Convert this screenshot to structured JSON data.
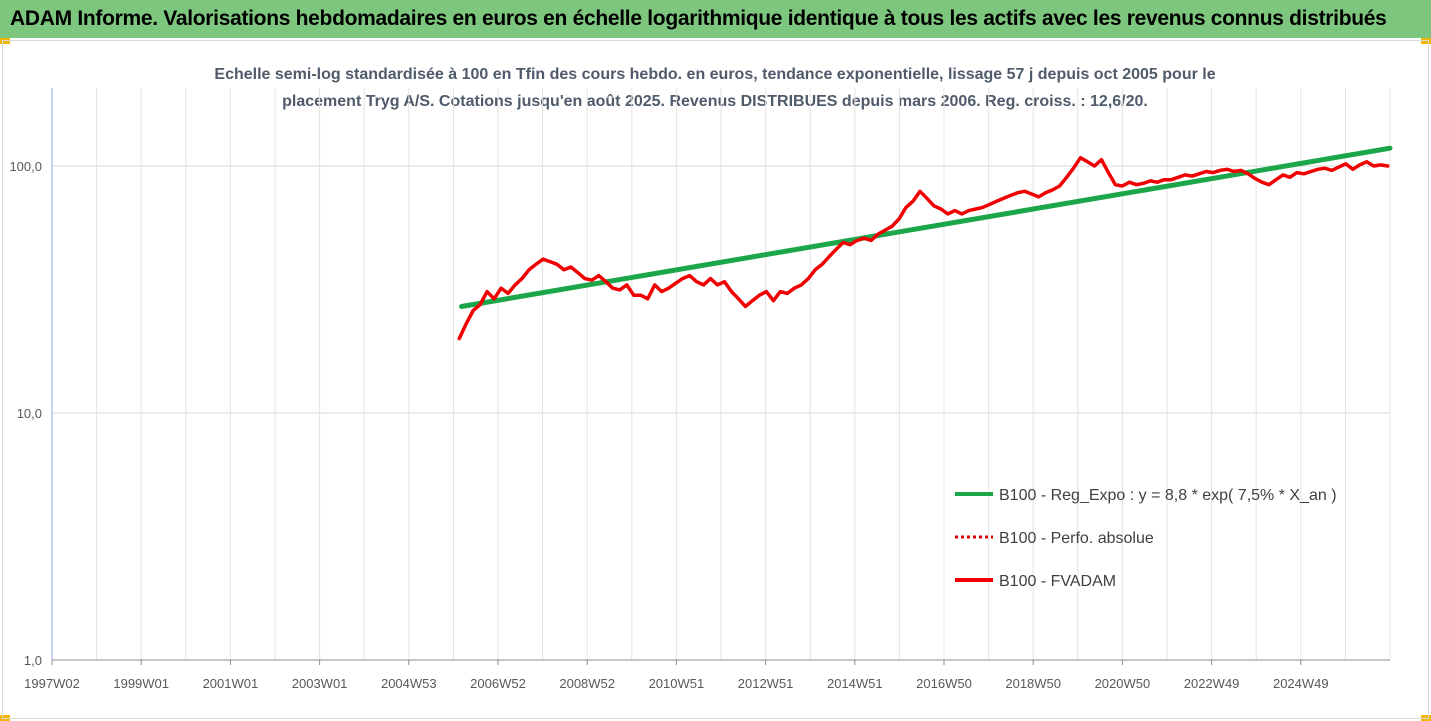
{
  "header": {
    "title": "ADAM Informe. Valorisations hebdomadaires en euros en échelle logarithmique identique à tous les actifs avec les revenus connus distribués"
  },
  "chart_data": {
    "type": "line",
    "title_line1": "Echelle semi-log standardisée à 100 en Tfin des cours hebdo. en euros, tendance exponentielle, lissage 57 j depuis oct 2005 pour le",
    "title_line2": "placement Tryg A/S. Cotations jusqu'en août 2025. Revenus DISTRIBUES depuis mars 2006. Reg. croiss. : 12,6/20.",
    "y_scale": "log",
    "ylim": [
      1,
      200
    ],
    "y_ticks": [
      {
        "value": 1,
        "label": "1,0"
      },
      {
        "value": 10,
        "label": "10,0"
      },
      {
        "value": 100,
        "label": "100,0"
      }
    ],
    "xlim": [
      1997.0,
      2025.75
    ],
    "x_tick_labels": [
      "1997W02",
      "1999W01",
      "2001W01",
      "2003W01",
      "2004W53",
      "2006W52",
      "2008W52",
      "2010W51",
      "2012W51",
      "2014W51",
      "2016W50",
      "2018W50",
      "2020W50",
      "2022W49",
      "2024W49"
    ],
    "grid": true,
    "legend_position": "right",
    "series": [
      {
        "name": "B100 - Reg_Expo : y = 8,8 * exp( 7,5% *  X_an )",
        "color": "#1ca64a",
        "style": "solid",
        "x": [
          2005.8,
          2025.75
        ],
        "y": [
          27,
          118
        ]
      },
      {
        "name": "B100 - Perfo. absolue",
        "color": "#e00000",
        "style": "dotted",
        "x": [],
        "y": []
      },
      {
        "name": "B100 - FVADAM",
        "color": "#f00000",
        "style": "solid",
        "x": [
          2005.75,
          2005.9,
          2006.05,
          2006.2,
          2006.35,
          2006.5,
          2006.65,
          2006.8,
          2006.95,
          2007.1,
          2007.25,
          2007.4,
          2007.55,
          2007.7,
          2007.85,
          2008.0,
          2008.15,
          2008.3,
          2008.45,
          2008.6,
          2008.75,
          2008.9,
          2009.05,
          2009.2,
          2009.35,
          2009.5,
          2009.65,
          2009.8,
          2009.95,
          2010.1,
          2010.25,
          2010.4,
          2010.55,
          2010.7,
          2010.85,
          2011.0,
          2011.15,
          2011.3,
          2011.45,
          2011.6,
          2011.75,
          2011.9,
          2012.05,
          2012.2,
          2012.35,
          2012.5,
          2012.65,
          2012.8,
          2012.95,
          2013.1,
          2013.25,
          2013.4,
          2013.55,
          2013.7,
          2013.85,
          2014.0,
          2014.15,
          2014.3,
          2014.45,
          2014.6,
          2014.75,
          2014.9,
          2015.05,
          2015.2,
          2015.35,
          2015.5,
          2015.65,
          2015.8,
          2015.95,
          2016.1,
          2016.25,
          2016.4,
          2016.55,
          2016.7,
          2016.85,
          2017.0,
          2017.15,
          2017.3,
          2017.45,
          2017.6,
          2017.75,
          2017.9,
          2018.05,
          2018.2,
          2018.35,
          2018.5,
          2018.65,
          2018.8,
          2018.95,
          2019.1,
          2019.25,
          2019.4,
          2019.55,
          2019.7,
          2019.85,
          2020.0,
          2020.15,
          2020.3,
          2020.45,
          2020.6,
          2020.75,
          2020.9,
          2021.05,
          2021.2,
          2021.35,
          2021.5,
          2021.65,
          2021.8,
          2021.95,
          2022.1,
          2022.25,
          2022.4,
          2022.55,
          2022.7,
          2022.85,
          2023.0,
          2023.15,
          2023.3,
          2023.45,
          2023.6,
          2023.75,
          2023.9,
          2024.05,
          2024.2,
          2024.35,
          2024.5,
          2024.65,
          2024.8,
          2024.95,
          2025.1,
          2025.25,
          2025.4,
          2025.55,
          2025.7
        ],
        "y": [
          20,
          23,
          26,
          27.5,
          31,
          29,
          32,
          30.5,
          33,
          35,
          38,
          40,
          42,
          41,
          40,
          38,
          39,
          37,
          35,
          34.5,
          36,
          34,
          32,
          31.5,
          33,
          30,
          30,
          29,
          33,
          31,
          32,
          33.5,
          35,
          36,
          34,
          33,
          35,
          33,
          34,
          31,
          29,
          27,
          28.5,
          30,
          31,
          28.5,
          31,
          30.5,
          32,
          33,
          35,
          38,
          40,
          43,
          46,
          49,
          48,
          50,
          51,
          50,
          53,
          55,
          57,
          61,
          68,
          72,
          79,
          74,
          69,
          67,
          64,
          66,
          64,
          66,
          67,
          68,
          70,
          72,
          74,
          76,
          78,
          79,
          77,
          75,
          78,
          80,
          83,
          90,
          98,
          108,
          104,
          100,
          106,
          94,
          84,
          83,
          86,
          84,
          85,
          87,
          86,
          88,
          88,
          90,
          92,
          91,
          93,
          95,
          94,
          96,
          97,
          95,
          96,
          93,
          89,
          86,
          84,
          88,
          92,
          90,
          94,
          93,
          95,
          97,
          98,
          96,
          99,
          102,
          97,
          101,
          104,
          100,
          101,
          100
        ]
      }
    ]
  }
}
